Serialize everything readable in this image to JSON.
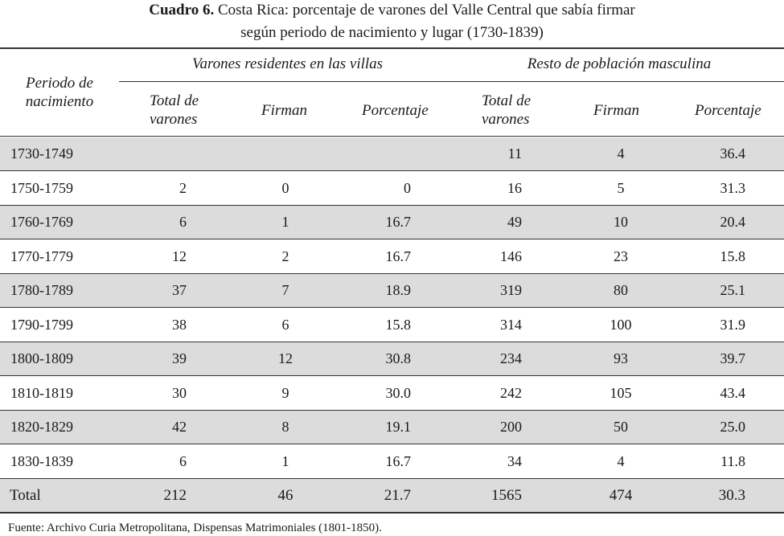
{
  "title": {
    "label": "Cuadro 6.",
    "line1": "Costa Rica: porcentaje de varones del Valle Central que sabía firmar",
    "line2": "según periodo de nacimiento y lugar (1730-1839)"
  },
  "headers": {
    "periodo_line1": "Periodo de",
    "periodo_line2": "nacimiento",
    "group1": "Varones residentes en las villas",
    "group2": "Resto de población masculina",
    "total_line1": "Total de",
    "total_line2": "varones",
    "firman": "Firman",
    "porcentaje": "Porcentaje"
  },
  "rows": [
    {
      "period": "1730-1749",
      "v_total": "",
      "v_firman": "",
      "v_pct": "",
      "r_total": "11",
      "r_firman": "4",
      "r_pct": "36.4"
    },
    {
      "period": "1750-1759",
      "v_total": "2",
      "v_firman": "0",
      "v_pct": "0",
      "r_total": "16",
      "r_firman": "5",
      "r_pct": "31.3"
    },
    {
      "period": "1760-1769",
      "v_total": "6",
      "v_firman": "1",
      "v_pct": "16.7",
      "r_total": "49",
      "r_firman": "10",
      "r_pct": "20.4"
    },
    {
      "period": "1770-1779",
      "v_total": "12",
      "v_firman": "2",
      "v_pct": "16.7",
      "r_total": "146",
      "r_firman": "23",
      "r_pct": "15.8"
    },
    {
      "period": "1780-1789",
      "v_total": "37",
      "v_firman": "7",
      "v_pct": "18.9",
      "r_total": "319",
      "r_firman": "80",
      "r_pct": "25.1"
    },
    {
      "period": "1790-1799",
      "v_total": "38",
      "v_firman": "6",
      "v_pct": "15.8",
      "r_total": "314",
      "r_firman": "100",
      "r_pct": "31.9"
    },
    {
      "period": "1800-1809",
      "v_total": "39",
      "v_firman": "12",
      "v_pct": "30.8",
      "r_total": "234",
      "r_firman": "93",
      "r_pct": "39.7"
    },
    {
      "period": "1810-1819",
      "v_total": "30",
      "v_firman": "9",
      "v_pct": "30.0",
      "r_total": "242",
      "r_firman": "105",
      "r_pct": "43.4"
    },
    {
      "period": "1820-1829",
      "v_total": "42",
      "v_firman": "8",
      "v_pct": "19.1",
      "r_total": "200",
      "r_firman": "50",
      "r_pct": "25.0"
    },
    {
      "period": "1830-1839",
      "v_total": "6",
      "v_firman": "1",
      "v_pct": "16.7",
      "r_total": "34",
      "r_firman": "4",
      "r_pct": "11.8"
    }
  ],
  "total": {
    "period": "Total",
    "v_total": "212",
    "v_firman": "46",
    "v_pct": "21.7",
    "r_total": "1565",
    "r_firman": "474",
    "r_pct": "30.3"
  },
  "footer": "Fuente: Archivo Curia Metropolitana, Dispensas Matrimoniales (1801-1850)."
}
